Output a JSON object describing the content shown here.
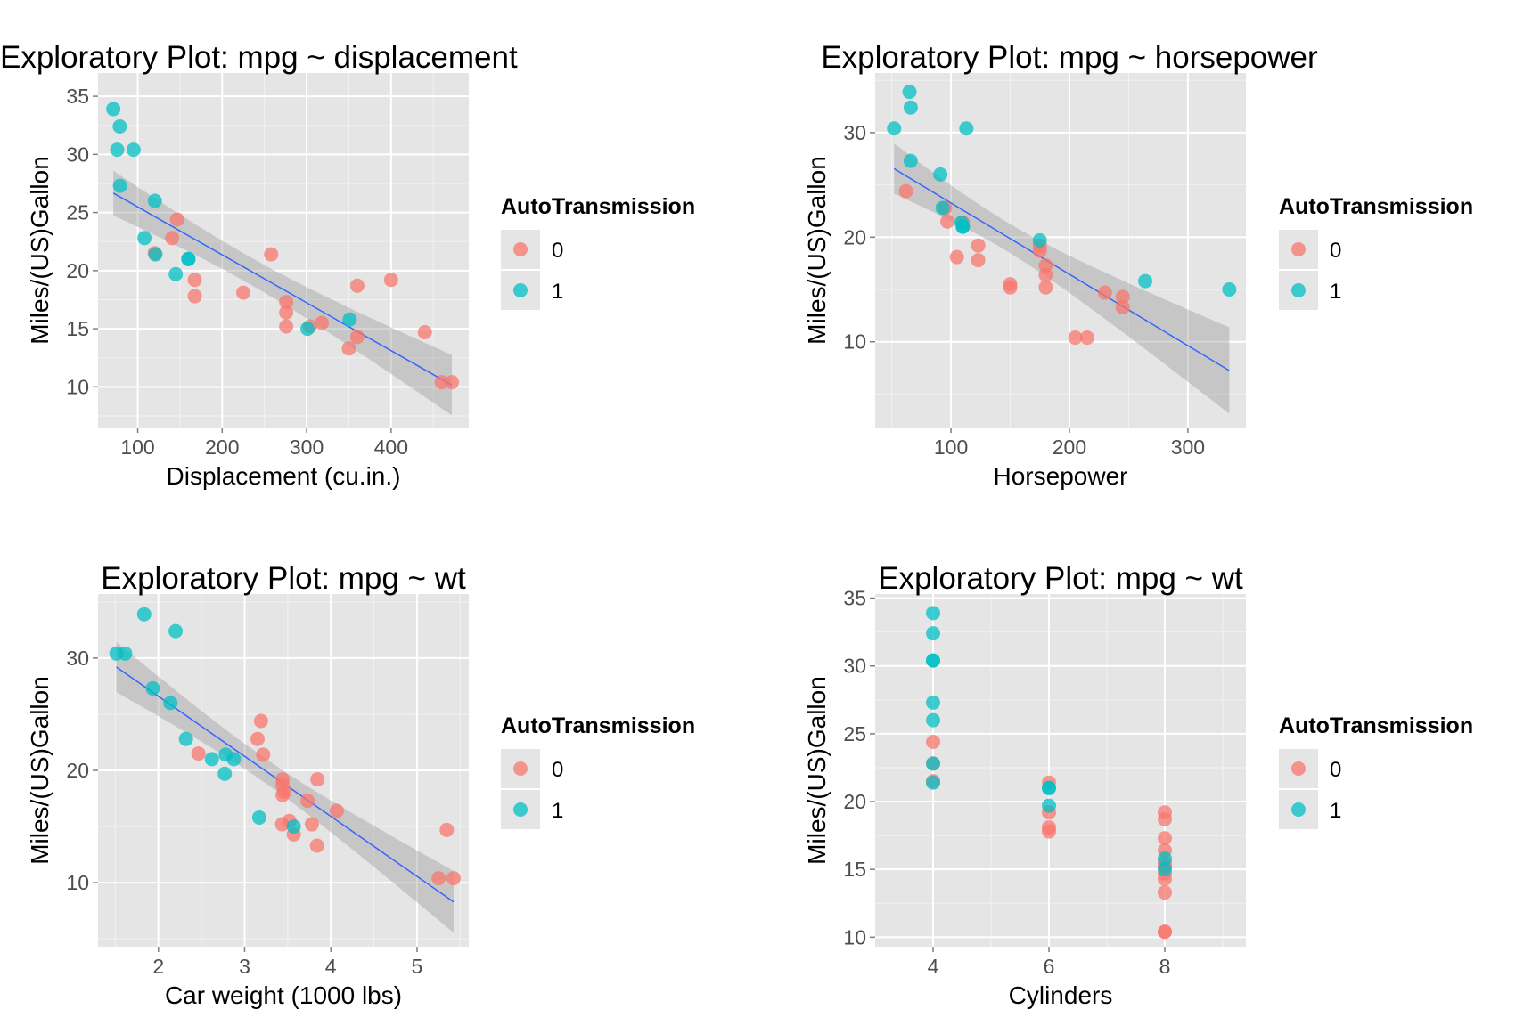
{
  "colors": {
    "panel": "#e5e5e5",
    "grid_major": "#ffffff",
    "grid_minor": "#f2f2f2",
    "tick": "#7f7f7f",
    "fit_line": "#3366ff",
    "confidence_band": "#999999"
  },
  "chart_data": [
    {
      "type": "scatter",
      "title": "Exploratory Plot: mpg ~ displacement",
      "xlabel": "Displacement (cu.in.)",
      "ylabel": "Miles/(US)Gallon",
      "xlim": [
        53,
        492
      ],
      "ylim": [
        6.5,
        37
      ],
      "x_ticks": [
        100,
        200,
        300,
        400
      ],
      "x_tick_labels": [
        "100",
        "200",
        "300",
        "400"
      ],
      "y_ticks": [
        10,
        15,
        20,
        25,
        30,
        35
      ],
      "y_tick_labels": [
        "10",
        "15",
        "20",
        "25",
        "30",
        "35"
      ],
      "grid": true,
      "smooth": {
        "method": "lm",
        "se": true,
        "x": [
          71.1,
          472
        ]
      },
      "legend": {
        "title": "AutoTransmission",
        "placement": "right",
        "entries": [
          {
            "label": "0",
            "color": "#f8766d"
          },
          {
            "label": "1",
            "color": "#00bfc4"
          }
        ]
      },
      "series": [
        {
          "label": "0",
          "color": "#f8766d",
          "points": [
            [
              258,
              21.4
            ],
            [
              360,
              18.7
            ],
            [
              225,
              18.1
            ],
            [
              360,
              14.3
            ],
            [
              146.7,
              24.4
            ],
            [
              140.8,
              22.8
            ],
            [
              167.6,
              19.2
            ],
            [
              167.6,
              17.8
            ],
            [
              275.8,
              16.4
            ],
            [
              275.8,
              17.3
            ],
            [
              275.8,
              15.2
            ],
            [
              472,
              10.4
            ],
            [
              460,
              10.4
            ],
            [
              440,
              14.7
            ],
            [
              120.1,
              21.5
            ],
            [
              318,
              15.5
            ],
            [
              304,
              15.2
            ],
            [
              350,
              13.3
            ],
            [
              400,
              19.2
            ]
          ]
        },
        {
          "label": "1",
          "color": "#00bfc4",
          "points": [
            [
              160,
              21
            ],
            [
              160,
              21
            ],
            [
              108,
              22.8
            ],
            [
              78.7,
              32.4
            ],
            [
              75.7,
              30.4
            ],
            [
              71.1,
              33.9
            ],
            [
              79,
              27.3
            ],
            [
              120.3,
              26
            ],
            [
              95.1,
              30.4
            ],
            [
              351,
              15.8
            ],
            [
              145,
              19.7
            ],
            [
              301,
              15
            ],
            [
              121,
              21.4
            ]
          ]
        }
      ]
    },
    {
      "type": "scatter",
      "title": "Exploratory Plot: mpg ~ horsepower",
      "xlabel": "Horsepower",
      "ylabel": "Miles/(US)Gallon",
      "xlim": [
        36,
        349
      ],
      "ylim": [
        1.8,
        35.7
      ],
      "x_ticks": [
        100,
        200,
        300
      ],
      "x_tick_labels": [
        "100",
        "200",
        "300"
      ],
      "y_ticks": [
        10,
        20,
        30
      ],
      "y_tick_labels": [
        "10",
        "20",
        "30"
      ],
      "grid": true,
      "smooth": {
        "method": "lm",
        "se": true,
        "x": [
          52,
          335
        ]
      },
      "legend": {
        "title": "AutoTransmission",
        "placement": "right",
        "entries": [
          {
            "label": "0",
            "color": "#f8766d"
          },
          {
            "label": "1",
            "color": "#00bfc4"
          }
        ]
      },
      "series": [
        {
          "label": "0",
          "color": "#f8766d",
          "points": [
            [
              110,
              21.4
            ],
            [
              175,
              18.7
            ],
            [
              105,
              18.1
            ],
            [
              245,
              14.3
            ],
            [
              62,
              24.4
            ],
            [
              95,
              22.8
            ],
            [
              123,
              19.2
            ],
            [
              123,
              17.8
            ],
            [
              180,
              16.4
            ],
            [
              180,
              17.3
            ],
            [
              180,
              15.2
            ],
            [
              205,
              10.4
            ],
            [
              215,
              10.4
            ],
            [
              230,
              14.7
            ],
            [
              97,
              21.5
            ],
            [
              150,
              15.5
            ],
            [
              150,
              15.2
            ],
            [
              245,
              13.3
            ],
            [
              175,
              19.2
            ]
          ]
        },
        {
          "label": "1",
          "color": "#00bfc4",
          "points": [
            [
              110,
              21
            ],
            [
              110,
              21
            ],
            [
              93,
              22.8
            ],
            [
              66,
              32.4
            ],
            [
              52,
              30.4
            ],
            [
              65,
              33.9
            ],
            [
              66,
              27.3
            ],
            [
              91,
              26
            ],
            [
              113,
              30.4
            ],
            [
              264,
              15.8
            ],
            [
              175,
              19.7
            ],
            [
              335,
              15
            ],
            [
              109,
              21.4
            ]
          ]
        }
      ]
    },
    {
      "type": "scatter",
      "title": "Exploratory Plot: mpg ~ wt",
      "xlabel": "Car weight (1000 lbs)",
      "ylabel": "Miles/(US)Gallon",
      "xlim": [
        1.3,
        5.6
      ],
      "ylim": [
        4.3,
        35.7
      ],
      "x_ticks": [
        2,
        3,
        4,
        5
      ],
      "x_tick_labels": [
        "2",
        "3",
        "4",
        "5"
      ],
      "y_ticks": [
        10,
        20,
        30
      ],
      "y_tick_labels": [
        "10",
        "20",
        "30"
      ],
      "grid": true,
      "smooth": {
        "method": "lm",
        "se": true,
        "x": [
          1.513,
          5.424
        ]
      },
      "legend": {
        "title": "AutoTransmission",
        "placement": "right",
        "entries": [
          {
            "label": "0",
            "color": "#f8766d"
          },
          {
            "label": "1",
            "color": "#00bfc4"
          }
        ]
      },
      "series": [
        {
          "label": "0",
          "color": "#f8766d",
          "points": [
            [
              3.215,
              21.4
            ],
            [
              3.44,
              18.7
            ],
            [
              3.46,
              18.1
            ],
            [
              3.57,
              14.3
            ],
            [
              3.19,
              24.4
            ],
            [
              3.15,
              22.8
            ],
            [
              3.44,
              19.2
            ],
            [
              3.44,
              17.8
            ],
            [
              4.07,
              16.4
            ],
            [
              3.73,
              17.3
            ],
            [
              3.78,
              15.2
            ],
            [
              5.25,
              10.4
            ],
            [
              5.424,
              10.4
            ],
            [
              5.345,
              14.7
            ],
            [
              2.465,
              21.5
            ],
            [
              3.52,
              15.5
            ],
            [
              3.435,
              15.2
            ],
            [
              3.84,
              13.3
            ],
            [
              3.845,
              19.2
            ]
          ]
        },
        {
          "label": "1",
          "color": "#00bfc4",
          "points": [
            [
              2.62,
              21
            ],
            [
              2.875,
              21
            ],
            [
              2.32,
              22.8
            ],
            [
              2.2,
              32.4
            ],
            [
              1.615,
              30.4
            ],
            [
              1.835,
              33.9
            ],
            [
              1.935,
              27.3
            ],
            [
              2.14,
              26
            ],
            [
              1.513,
              30.4
            ],
            [
              3.17,
              15.8
            ],
            [
              2.77,
              19.7
            ],
            [
              3.57,
              15
            ],
            [
              2.78,
              21.4
            ]
          ]
        }
      ]
    },
    {
      "type": "scatter",
      "title": "Exploratory Plot: mpg ~ wt",
      "xlabel": "Cylinders",
      "ylabel": "Miles/(US)Gallon",
      "xlim": [
        3,
        9.4
      ],
      "ylim": [
        9.3,
        35.3
      ],
      "x_ticks": [
        4,
        6,
        8
      ],
      "x_tick_labels": [
        "4",
        "6",
        "8"
      ],
      "y_ticks": [
        10,
        15,
        20,
        25,
        30,
        35
      ],
      "y_tick_labels": [
        "10",
        "15",
        "20",
        "25",
        "30",
        "35"
      ],
      "grid": true,
      "legend": {
        "title": "AutoTransmission",
        "placement": "right",
        "entries": [
          {
            "label": "0",
            "color": "#f8766d"
          },
          {
            "label": "1",
            "color": "#00bfc4"
          }
        ]
      },
      "series": [
        {
          "label": "0",
          "color": "#f8766d",
          "points": [
            [
              6,
              21.4
            ],
            [
              8,
              18.7
            ],
            [
              6,
              18.1
            ],
            [
              8,
              14.3
            ],
            [
              4,
              24.4
            ],
            [
              4,
              22.8
            ],
            [
              6,
              19.2
            ],
            [
              6,
              17.8
            ],
            [
              8,
              16.4
            ],
            [
              8,
              17.3
            ],
            [
              8,
              15.2
            ],
            [
              8,
              10.4
            ],
            [
              8,
              10.4
            ],
            [
              8,
              14.7
            ],
            [
              4,
              21.5
            ],
            [
              8,
              15.5
            ],
            [
              8,
              15.2
            ],
            [
              8,
              13.3
            ],
            [
              8,
              19.2
            ]
          ]
        },
        {
          "label": "1",
          "color": "#00bfc4",
          "points": [
            [
              6,
              21
            ],
            [
              6,
              21
            ],
            [
              4,
              22.8
            ],
            [
              4,
              32.4
            ],
            [
              4,
              30.4
            ],
            [
              4,
              33.9
            ],
            [
              4,
              27.3
            ],
            [
              4,
              26
            ],
            [
              4,
              30.4
            ],
            [
              8,
              15.8
            ],
            [
              6,
              19.7
            ],
            [
              8,
              15
            ],
            [
              4,
              21.4
            ]
          ]
        }
      ]
    }
  ]
}
